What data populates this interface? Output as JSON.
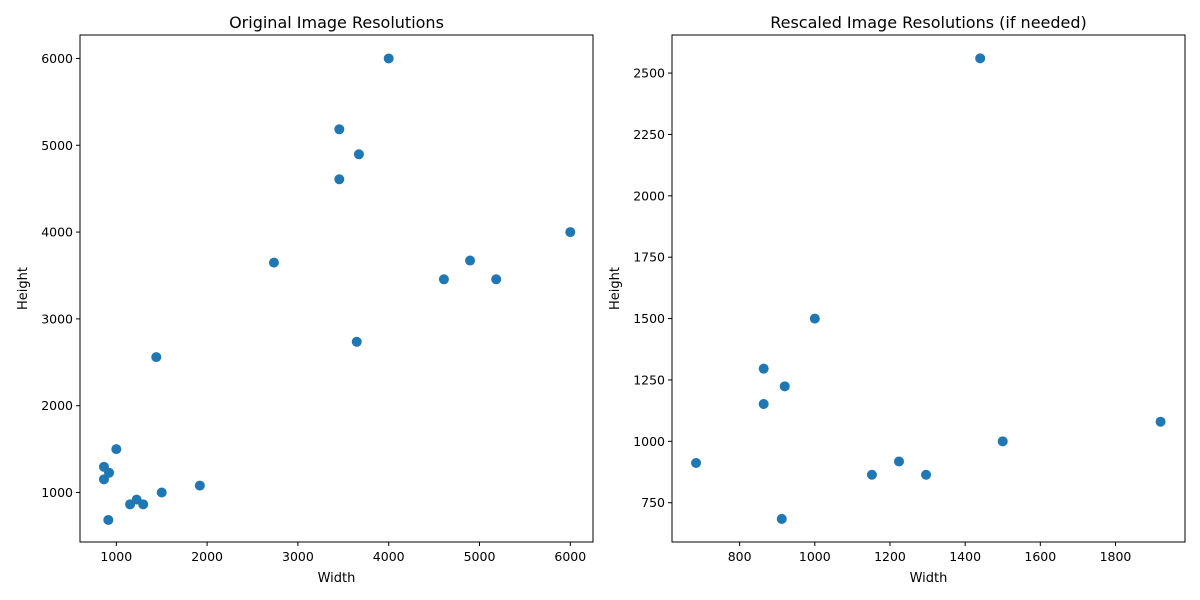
{
  "chart_data": [
    {
      "type": "scatter",
      "title": "Original Image Resolutions",
      "xlabel": "Width",
      "ylabel": "Height",
      "xlim": [
        600,
        6250
      ],
      "ylim": [
        430,
        6270
      ],
      "xticks": [
        1000,
        2000,
        3000,
        4000,
        5000,
        6000
      ],
      "yticks": [
        1000,
        2000,
        3000,
        4000,
        5000,
        6000
      ],
      "grid": false,
      "color": "#1f77b4",
      "points": [
        {
          "x": 4000,
          "y": 6000
        },
        {
          "x": 3456,
          "y": 5184
        },
        {
          "x": 3672,
          "y": 4896
        },
        {
          "x": 3456,
          "y": 4608
        },
        {
          "x": 6000,
          "y": 4000
        },
        {
          "x": 4896,
          "y": 3672
        },
        {
          "x": 2736,
          "y": 3648
        },
        {
          "x": 4608,
          "y": 3456
        },
        {
          "x": 5184,
          "y": 3456
        },
        {
          "x": 3648,
          "y": 2736
        },
        {
          "x": 1440,
          "y": 2560
        },
        {
          "x": 1000,
          "y": 1500
        },
        {
          "x": 864,
          "y": 1296
        },
        {
          "x": 920,
          "y": 1227
        },
        {
          "x": 864,
          "y": 1152
        },
        {
          "x": 1920,
          "y": 1080
        },
        {
          "x": 1500,
          "y": 1000
        },
        {
          "x": 1224,
          "y": 918
        },
        {
          "x": 1152,
          "y": 864
        },
        {
          "x": 1296,
          "y": 864
        },
        {
          "x": 912,
          "y": 684
        }
      ]
    },
    {
      "type": "scatter",
      "title": "Rescaled Image Resolutions (if needed)",
      "xlabel": "Width",
      "ylabel": "Height",
      "xlim": [
        620,
        1985
      ],
      "ylim": [
        590,
        2655
      ],
      "xticks": [
        800,
        1000,
        1200,
        1400,
        1600,
        1800
      ],
      "yticks": [
        750,
        1000,
        1250,
        1500,
        1750,
        2000,
        2250,
        2500
      ],
      "grid": false,
      "color": "#1f77b4",
      "points": [
        {
          "x": 1440,
          "y": 2560
        },
        {
          "x": 1000,
          "y": 1500
        },
        {
          "x": 864,
          "y": 1296
        },
        {
          "x": 920,
          "y": 1224
        },
        {
          "x": 864,
          "y": 1152
        },
        {
          "x": 1920,
          "y": 1080
        },
        {
          "x": 1500,
          "y": 1000
        },
        {
          "x": 684,
          "y": 912
        },
        {
          "x": 1224,
          "y": 918
        },
        {
          "x": 1152,
          "y": 864
        },
        {
          "x": 1296,
          "y": 864
        },
        {
          "x": 912,
          "y": 684
        }
      ]
    }
  ]
}
